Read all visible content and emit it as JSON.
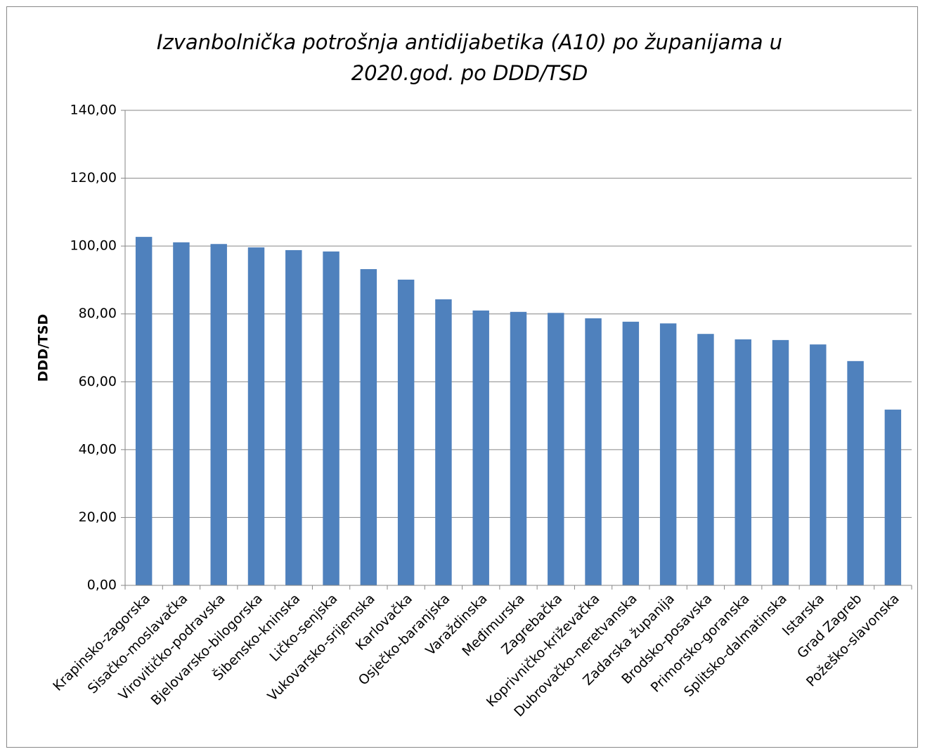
{
  "chart_data": {
    "type": "bar",
    "title": "Izvanbolnička potrošnja antidijabetika (A10) po županijama u 2020.god. po DDD/TSD",
    "y_label": "DDD/TSD",
    "categories": [
      "Krapinsko-zagorska",
      "Sisačko-moslavačka",
      "Virovitičko-podravska",
      "Bjelovarsko-bilogorska",
      "Šibensko-kninska",
      "Ličko-senjska",
      "Vukovarsko-srijemska",
      "Karlovačka",
      "Osječko-baranjska",
      "Varaždinska",
      "Međimurska",
      "Zagrebačka",
      "Koprivničko-križevačka",
      "Dubrovačko-neretvanska",
      "Zadarska županija",
      "Brodsko-posavska",
      "Primorsko-goranska",
      "Splitsko-dalmatinska",
      "Istarska",
      "Grad Zagreb",
      "Požeško-slavonska"
    ],
    "values": [
      102.7,
      101.1,
      100.6,
      99.6,
      98.8,
      98.4,
      93.2,
      90.1,
      84.3,
      81.0,
      80.6,
      80.3,
      78.7,
      77.7,
      77.2,
      74.1,
      72.5,
      72.3,
      71.0,
      66.1,
      51.8
    ],
    "color": "#4f81bd",
    "ylim": [
      0,
      140
    ],
    "yticks": [
      {
        "value": 0,
        "label": "0,00"
      },
      {
        "value": 20,
        "label": "20,00"
      },
      {
        "value": 40,
        "label": "40,00"
      },
      {
        "value": 60,
        "label": "60,00"
      },
      {
        "value": 80,
        "label": "80,00"
      },
      {
        "value": 100,
        "label": "100,00"
      },
      {
        "value": 120,
        "label": "120,00"
      },
      {
        "value": 140,
        "label": "140,00"
      }
    ],
    "grid": true
  }
}
